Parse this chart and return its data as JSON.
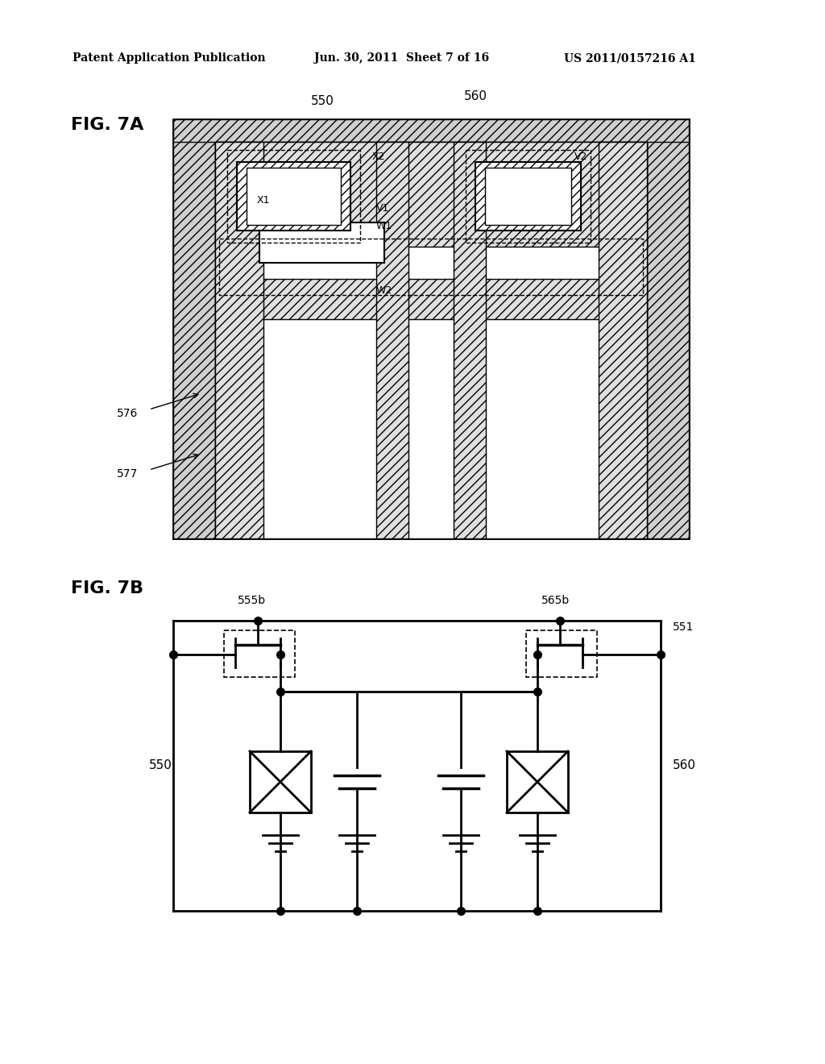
{
  "bg_color": "#ffffff",
  "header_text1": "Patent Application Publication",
  "header_text2": "Jun. 30, 2011  Sheet 7 of 16",
  "header_text3": "US 2011/0157216 A1",
  "fig7a_label": "FIG. 7A",
  "fig7b_label": "FIG. 7B",
  "label_550_top": "550",
  "label_560_top": "560",
  "label_X1": "X1",
  "label_X2": "X2",
  "label_V1": "V1",
  "label_V2": "V2",
  "label_W1": "W1",
  "label_W2": "W2",
  "label_576": "576",
  "label_577": "577",
  "label_555b": "555b",
  "label_565b": "565b",
  "label_551": "551",
  "label_550b": "550",
  "label_560b": "560"
}
